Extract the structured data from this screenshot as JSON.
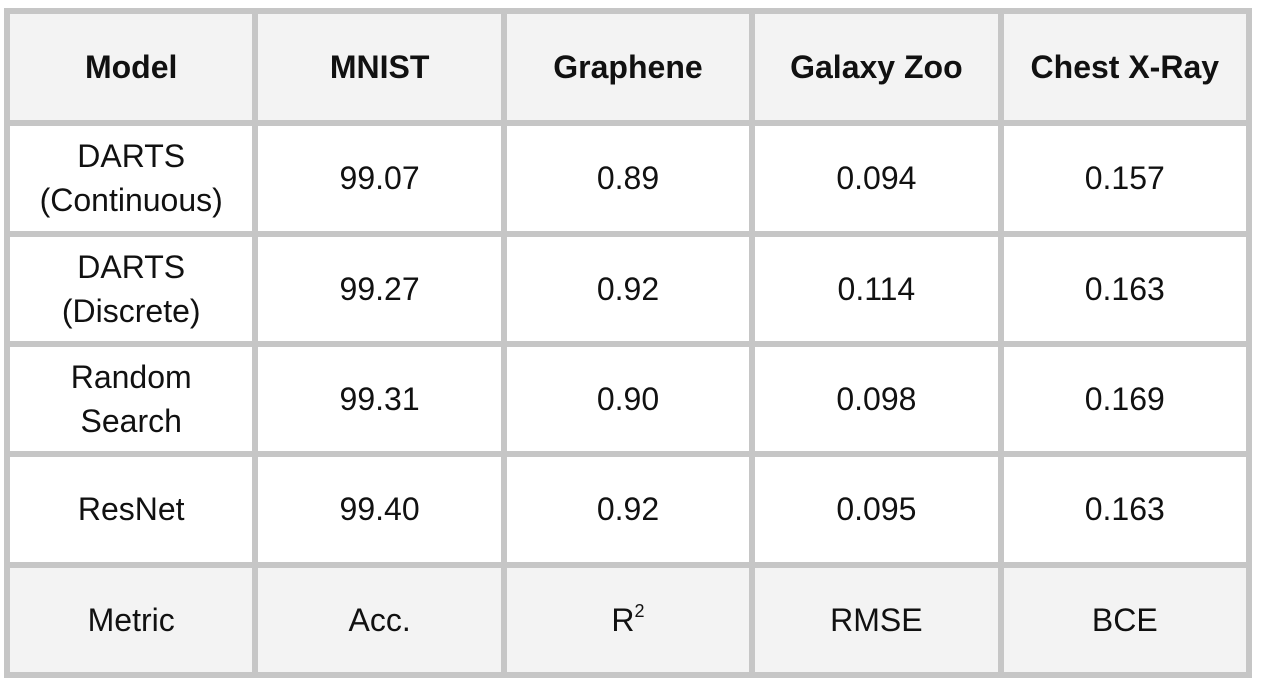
{
  "header": {
    "model": "Model",
    "datasets": [
      "MNIST",
      "Graphene",
      "Galaxy Zoo",
      "Chest X-Ray"
    ]
  },
  "rows": [
    {
      "model": "DARTS\n(Continuous)",
      "cells": [
        {
          "value": "99.07",
          "bold": false
        },
        {
          "value": "0.89",
          "bold": false
        },
        {
          "value": "0.094",
          "bold": true
        },
        {
          "value": "0.157",
          "bold": true
        }
      ]
    },
    {
      "model": "DARTS\n(Discrete)",
      "cells": [
        {
          "value": "99.27",
          "bold": false
        },
        {
          "value": "0.92",
          "bold": true
        },
        {
          "value": "0.114",
          "bold": false
        },
        {
          "value": "0.163",
          "bold": false
        }
      ]
    },
    {
      "model": "Random\nSearch",
      "cells": [
        {
          "value": "99.31",
          "bold": false
        },
        {
          "value": "0.90",
          "bold": false
        },
        {
          "value": "0.098",
          "bold": false
        },
        {
          "value": "0.169",
          "bold": false
        }
      ]
    },
    {
      "model": "ResNet",
      "cells": [
        {
          "value": "99.40",
          "bold": true
        },
        {
          "value": "0.92",
          "bold": true
        },
        {
          "value": "0.095",
          "bold": false
        },
        {
          "value": "0.163",
          "bold": false
        }
      ]
    }
  ],
  "metric_row": {
    "label": "Metric",
    "values": [
      "Acc.",
      "R",
      "RMSE",
      "BCE"
    ],
    "r2_superscript": "2"
  },
  "colors": {
    "border": "#c6c6c6",
    "header_bg": "#f3f3f3",
    "cell_bg": "#ffffff"
  }
}
